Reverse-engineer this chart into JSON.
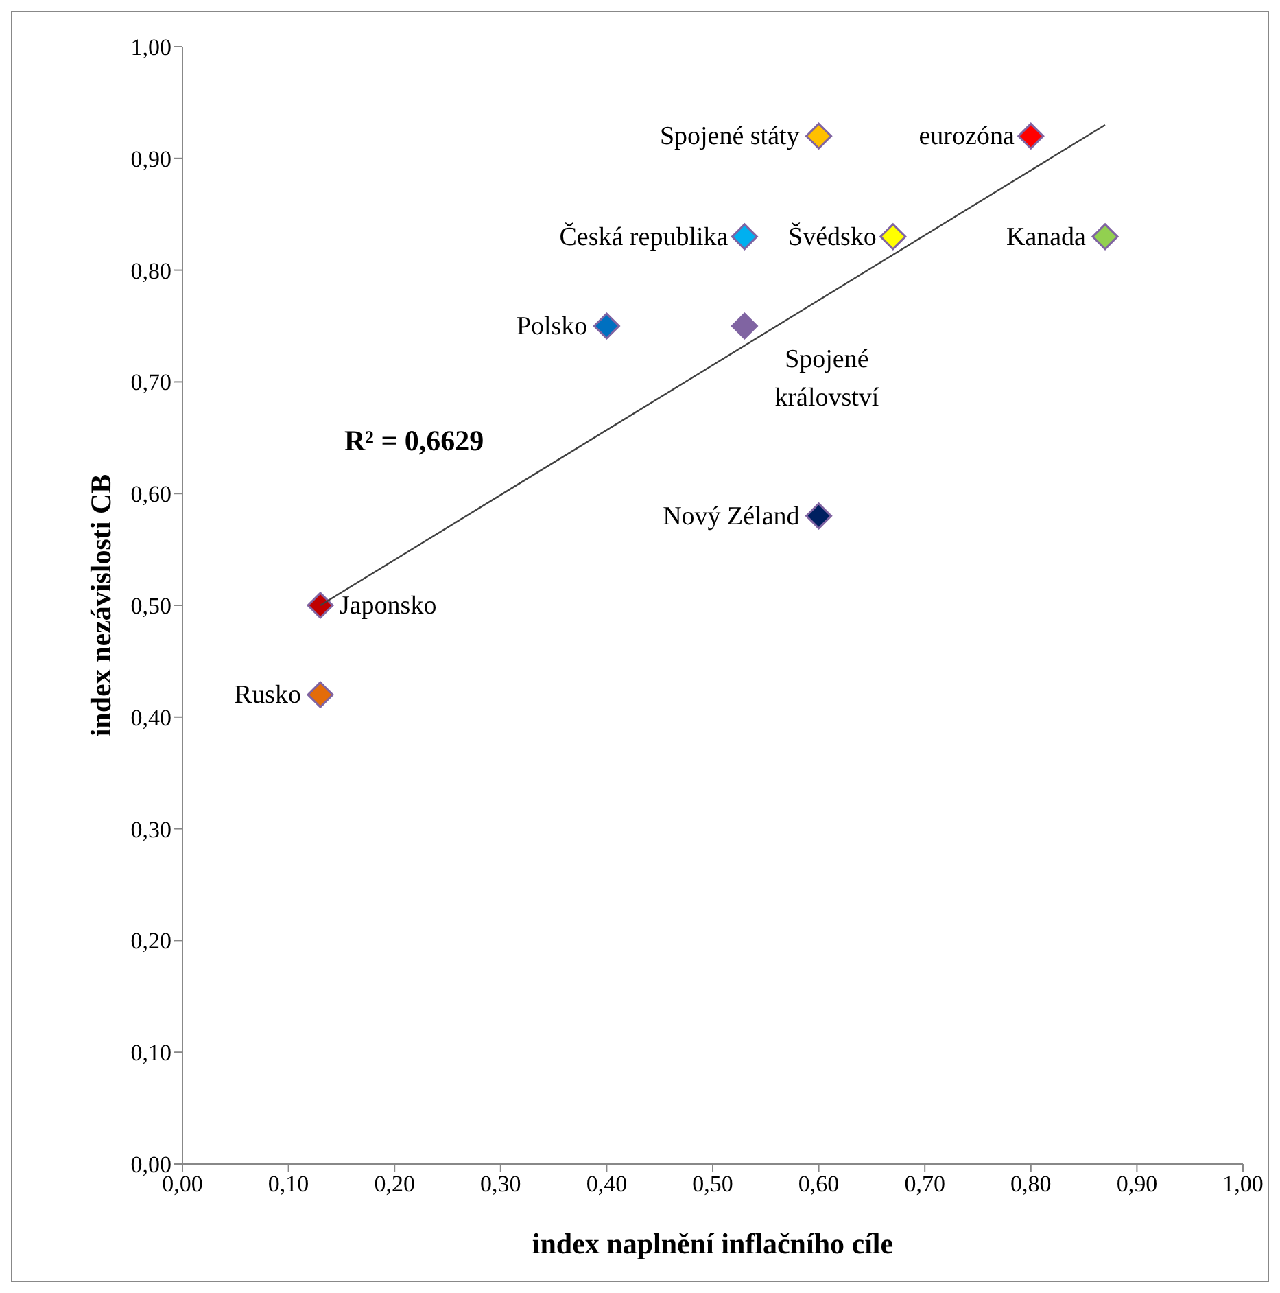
{
  "chart_data": {
    "type": "scatter",
    "xlabel": "index naplnění inflačního cíle",
    "ylabel": "index nezávislosti CB",
    "xlim": [
      0,
      1
    ],
    "ylim": [
      0,
      1
    ],
    "xticks": [
      {
        "value": 0,
        "label": "0,00"
      },
      {
        "value": 0.1,
        "label": "0,10"
      },
      {
        "value": 0.2,
        "label": "0,20"
      },
      {
        "value": 0.3,
        "label": "0,30"
      },
      {
        "value": 0.4,
        "label": "0,40"
      },
      {
        "value": 0.5,
        "label": "0,50"
      },
      {
        "value": 0.6,
        "label": "0,60"
      },
      {
        "value": 0.7,
        "label": "0,70"
      },
      {
        "value": 0.8,
        "label": "0,80"
      },
      {
        "value": 0.9,
        "label": "0,90"
      },
      {
        "value": 1,
        "label": "1,00"
      }
    ],
    "yticks": [
      {
        "value": 0,
        "label": "0,00"
      },
      {
        "value": 0.1,
        "label": "0,10"
      },
      {
        "value": 0.2,
        "label": "0,20"
      },
      {
        "value": 0.3,
        "label": "0,30"
      },
      {
        "value": 0.4,
        "label": "0,40"
      },
      {
        "value": 0.5,
        "label": "0,50"
      },
      {
        "value": 0.6,
        "label": "0,60"
      },
      {
        "value": 0.7,
        "label": "0,70"
      },
      {
        "value": 0.8,
        "label": "0,80"
      },
      {
        "value": 0.9,
        "label": "0,90"
      },
      {
        "value": 1,
        "label": "1,00"
      }
    ],
    "marker": "diamond",
    "series": [
      {
        "name": "Japonsko",
        "color": "#c00000",
        "x": [
          0.13
        ],
        "values": [
          0.5
        ]
      },
      {
        "name": "Rusko",
        "color": "#e36c09",
        "x": [
          0.13
        ],
        "values": [
          0.42
        ]
      },
      {
        "name": "Polsko",
        "color": "#0070c0",
        "x": [
          0.4
        ],
        "values": [
          0.75
        ]
      },
      {
        "name": "Česká republika",
        "color": "#00b0f0",
        "x": [
          0.53
        ],
        "values": [
          0.83
        ]
      },
      {
        "name": "Spojené státy",
        "color": "#ffc000",
        "x": [
          0.6
        ],
        "values": [
          0.92
        ]
      },
      {
        "name": "Švédsko",
        "color": "#ffff00",
        "x": [
          0.67
        ],
        "values": [
          0.83
        ]
      },
      {
        "name": "eurozóna",
        "color": "#ff0000",
        "x": [
          0.8
        ],
        "values": [
          0.92
        ]
      },
      {
        "name": "Kanada",
        "color": "#92d050",
        "x": [
          0.87
        ],
        "values": [
          0.83
        ]
      },
      {
        "name": "Spojené království",
        "color": "#8064a2",
        "x": [
          0.53
        ],
        "values": [
          0.75
        ]
      },
      {
        "name": "Nový Zéland",
        "color": "#002060",
        "x": [
          0.6
        ],
        "values": [
          0.58
        ]
      },
      {
        "type": "line",
        "color": "#404040",
        "x": [
          0.13,
          0.87
        ],
        "values": [
          0.5,
          0.93
        ],
        "marker": "none"
      }
    ],
    "annotations": [
      "R² = 0,6629"
    ]
  }
}
